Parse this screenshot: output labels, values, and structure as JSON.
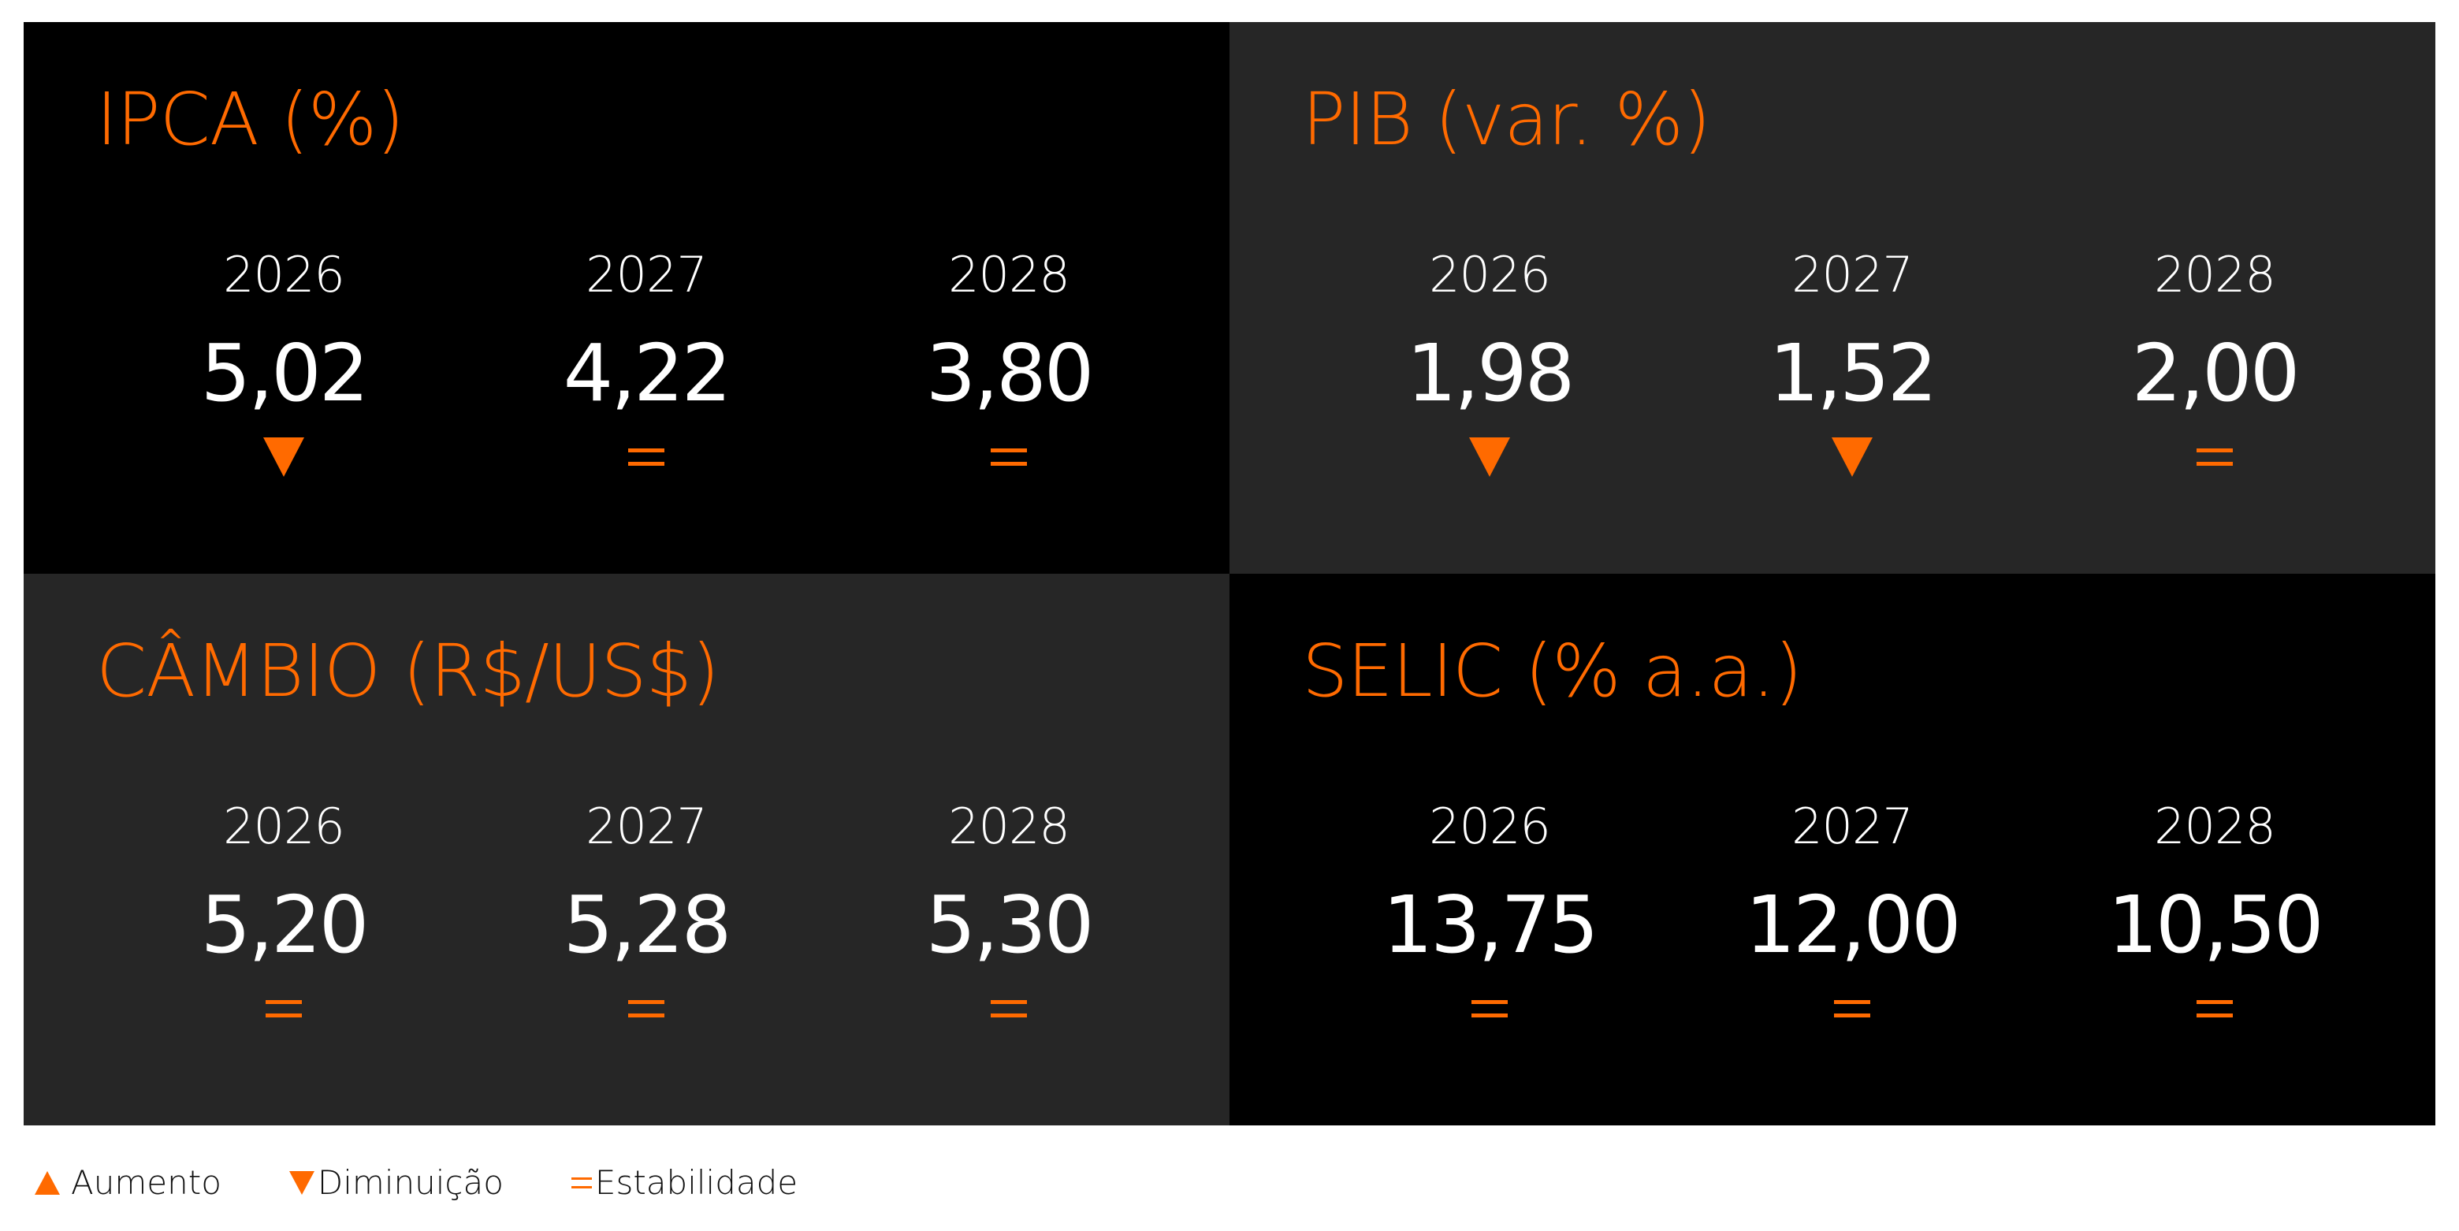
{
  "panels": [
    {
      "title": "IPCA (%)",
      "bg": "black",
      "items": [
        {
          "year": "2026",
          "value": "5,02",
          "trend": "down"
        },
        {
          "year": "2027",
          "value": "4,22",
          "trend": "equal"
        },
        {
          "year": "2028",
          "value": "3,80",
          "trend": "equal"
        }
      ]
    },
    {
      "title": "PIB (var. %)",
      "bg": "gray",
      "items": [
        {
          "year": "2026",
          "value": "1,98",
          "trend": "down"
        },
        {
          "year": "2027",
          "value": "1,52",
          "trend": "down"
        },
        {
          "year": "2028",
          "value": "2,00",
          "trend": "equal"
        }
      ]
    },
    {
      "title": "CÂMBIO (R$/US$)",
      "bg": "gray",
      "items": [
        {
          "year": "2026",
          "value": "5,20",
          "trend": "equal"
        },
        {
          "year": "2027",
          "value": "5,28",
          "trend": "equal"
        },
        {
          "year": "2028",
          "value": "5,30",
          "trend": "equal"
        }
      ]
    },
    {
      "title": "SELIC (% a.a.)",
      "bg": "black",
      "items": [
        {
          "year": "2026",
          "value": "13,75",
          "trend": "equal"
        },
        {
          "year": "2027",
          "value": "12,00",
          "trend": "equal"
        },
        {
          "year": "2028",
          "value": "10,50",
          "trend": "equal"
        }
      ]
    }
  ],
  "legend": {
    "increase": "Aumento",
    "decrease": "Diminuição",
    "stable": "Estabilidade"
  },
  "colors": {
    "accent": "#ff6a00",
    "panel_black": "#000000",
    "panel_gray": "#262626",
    "text": "#ffffff"
  },
  "icons": {
    "up": "triangle-up-icon",
    "down": "triangle-down-icon",
    "equal": "equals-icon"
  }
}
